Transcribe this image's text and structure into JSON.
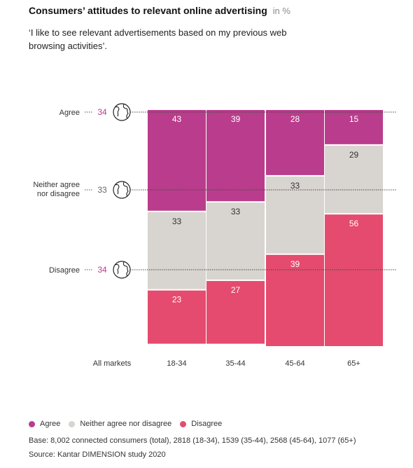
{
  "title": "Consumers’ attitudes to relevant online advertising",
  "title_unit": "in %",
  "subtitle": "‘I like to see relevant advertisements based on my previous web browsing activities’.",
  "colors": {
    "agree": "#b93d8c",
    "neutral": "#d8d4cf",
    "disagree": "#e54b6e",
    "all_markets_value": "#b93d8c"
  },
  "legend": [
    {
      "label": "Agree",
      "color": "#b93d8c"
    },
    {
      "label": "Neither agree nor disagree",
      "color": "#d8d4cf"
    },
    {
      "label": "Disagree",
      "color": "#e54b6e"
    }
  ],
  "base_note": "Base: 8,002 connected consumers (total), 2818 (18-34), 1539 (35-44), 2568 (45-64), 1077 (65+)",
  "source_note": "Source: Kantar DIMENSION study 2020",
  "chart_data": {
    "type": "bar",
    "stacked": true,
    "categories": [
      "18-34",
      "35-44",
      "45-64",
      "65+"
    ],
    "series": [
      {
        "name": "Agree",
        "values": [
          43,
          39,
          28,
          15
        ]
      },
      {
        "name": "Neither agree nor disagree",
        "values": [
          33,
          33,
          33,
          29
        ]
      },
      {
        "name": "Disagree",
        "values": [
          23,
          27,
          39,
          56
        ]
      }
    ],
    "all_markets": {
      "label": "All markets",
      "icon": "globe-icon",
      "values": [
        {
          "label": "Agree",
          "value": 34
        },
        {
          "label": "Neither agree nor disagree",
          "value": 33
        },
        {
          "label": "Disagree",
          "value": 34
        }
      ]
    },
    "ylim": [
      0,
      100
    ]
  }
}
